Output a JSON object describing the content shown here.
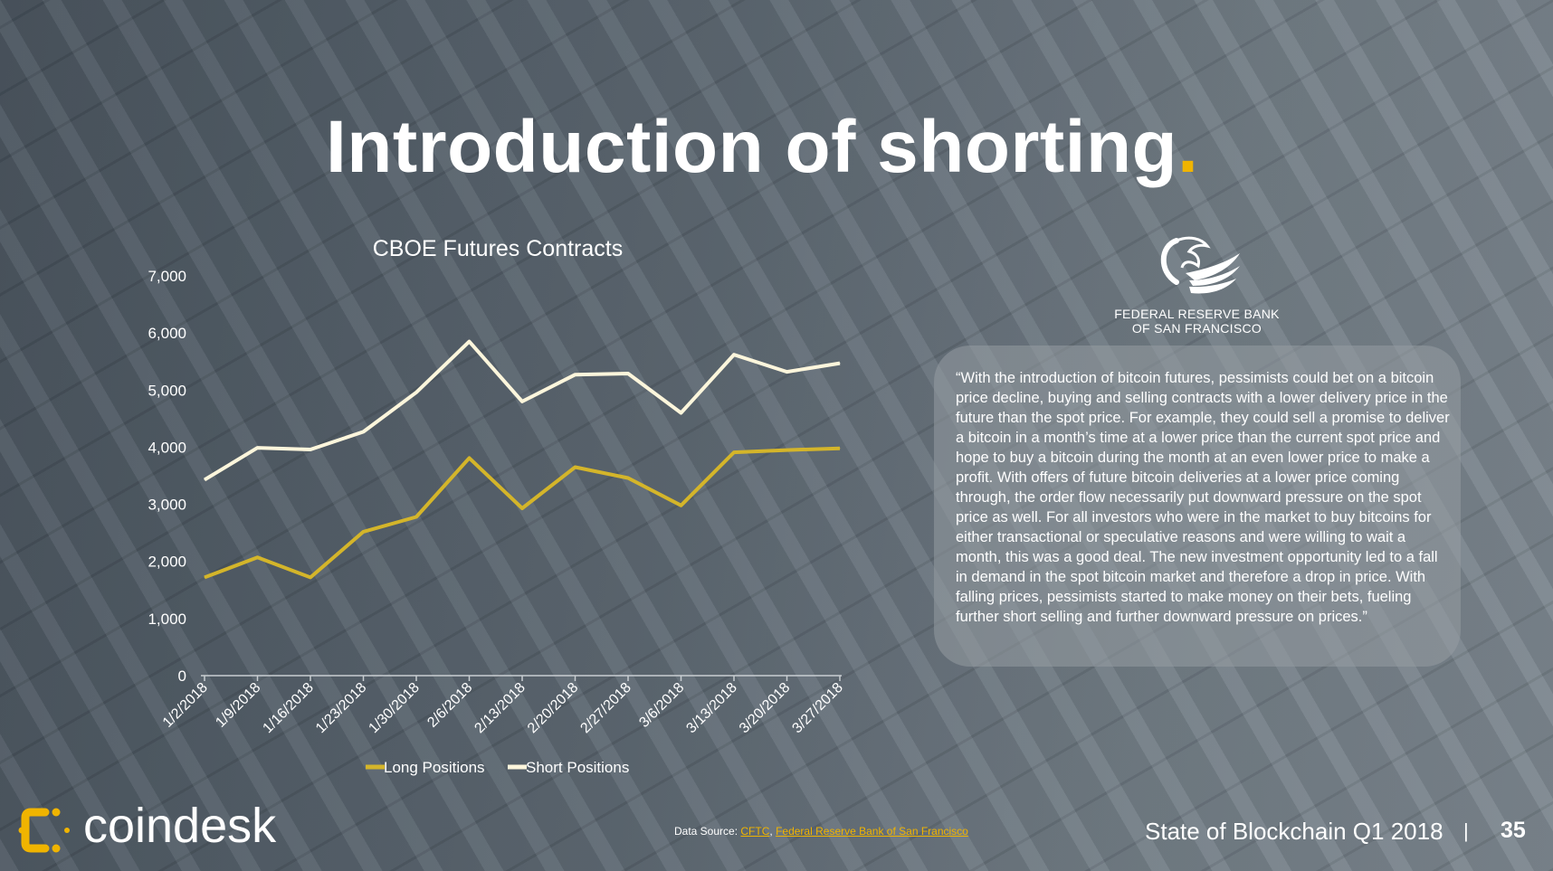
{
  "slide": {
    "title": "Introduction of shorting",
    "title_dot": ".",
    "accent_color": "#f0b400"
  },
  "chart_data": {
    "type": "line",
    "title": "CBOE Futures Contracts",
    "categories": [
      "1/2/2018",
      "1/9/2018",
      "1/16/2018",
      "1/23/2018",
      "1/30/2018",
      "2/6/2018",
      "2/13/2018",
      "2/20/2018",
      "2/27/2018",
      "3/6/2018",
      "3/13/2018",
      "3/20/2018",
      "3/27/2018"
    ],
    "series": [
      {
        "name": "Long Positions",
        "color": "#d4b52a",
        "values": [
          1720,
          2070,
          1720,
          2520,
          2780,
          3810,
          2930,
          3650,
          3460,
          2980,
          3910,
          3950,
          3980
        ]
      },
      {
        "name": "Short Positions",
        "color": "#fdf6dc",
        "values": [
          3430,
          3990,
          3960,
          4270,
          4960,
          5850,
          4800,
          5270,
          5290,
          4600,
          5620,
          5320,
          5470
        ]
      }
    ],
    "yticks": [
      "0",
      "1,000",
      "2,000",
      "3,000",
      "4,000",
      "5,000",
      "6,000",
      "7,000"
    ],
    "ylim": [
      0,
      7000
    ],
    "grid": false,
    "legend_position": "bottom"
  },
  "fed_logo": {
    "icon": "eagle-icon",
    "line1": "FEDERAL RESERVE BANK",
    "line2": "OF SAN FRANCISCO"
  },
  "quote": "“With the introduction of bitcoin futures, pessimists could bet on a bitcoin price decline, buying and selling contracts with a lower delivery price in the future than the spot price. For example, they could sell a promise to deliver a bitcoin in a month’s time at a lower price than the current spot price and hope to buy a bitcoin during the month at an even lower price to make a profit. With offers of future bitcoin deliveries at a lower price coming through, the order flow necessarily put downward pressure on the spot price as well. For all investors who were in the market to buy bitcoins for either transactional or speculative reasons and were willing to wait a month, this was a good deal. The new investment opportunity led to a fall in demand in the spot bitcoin market and therefore a drop in price. With falling prices, pessimists started to make money on their bets, fueling further short selling and further downward pressure on prices.”",
  "footer": {
    "brand": "coindesk",
    "brand_icon": "coindesk-logo-icon",
    "source_label": "Data Source:",
    "source_link1": "CFTC",
    "source_sep": ",",
    "source_link2": "Federal Reserve Bank of San Francisco",
    "report_title": "State of Blockchain Q1 2018",
    "separator": "|",
    "page_number": "35"
  }
}
